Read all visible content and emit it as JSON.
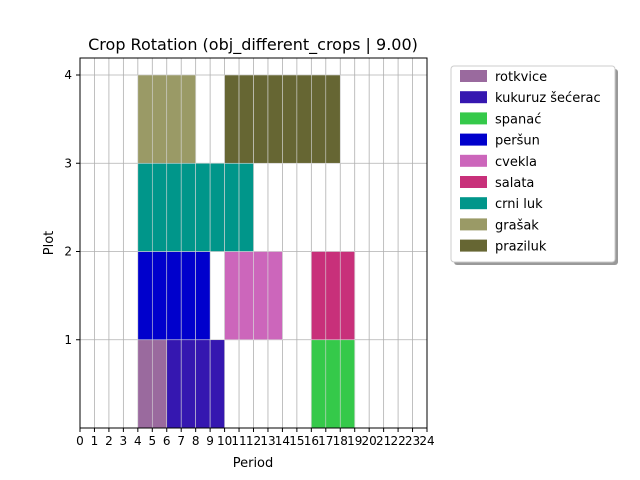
{
  "chart_data": {
    "type": "bar",
    "title": "Crop Rotation (obj_different_crops | 9.00)",
    "xlabel": "Period",
    "ylabel": "Plot",
    "xlim": [
      0,
      24
    ],
    "ylim": [
      0,
      4
    ],
    "xticks": [
      "0",
      "1",
      "2",
      "3",
      "4",
      "5",
      "6",
      "7",
      "8",
      "9",
      "10",
      "11",
      "12",
      "13",
      "14",
      "15",
      "16",
      "17",
      "18",
      "19",
      "20",
      "21",
      "22",
      "23",
      "24"
    ],
    "yticks": [
      "1",
      "2",
      "3",
      "4"
    ],
    "grid": true,
    "legend_position": "outside-right",
    "legend": [
      {
        "name": "rotkvice",
        "color": "#9a6a9e"
      },
      {
        "name": "kukuruz šećerac",
        "color": "#3517b0"
      },
      {
        "name": "spanać",
        "color": "#35c94a"
      },
      {
        "name": "peršun",
        "color": "#0000cc"
      },
      {
        "name": "cvekla",
        "color": "#cc66bb"
      },
      {
        "name": "salata",
        "color": "#c8307a"
      },
      {
        "name": "crni luk",
        "color": "#00968a"
      },
      {
        "name": "grašak",
        "color": "#9a9a66"
      },
      {
        "name": "praziluk",
        "color": "#666633"
      }
    ],
    "blocks": [
      {
        "plot": 1,
        "crop": "rotkvice",
        "periods": [
          4,
          5
        ]
      },
      {
        "plot": 1,
        "crop": "kukuruz šećerac",
        "periods": [
          6,
          7,
          8,
          9
        ]
      },
      {
        "plot": 1,
        "crop": "spanać",
        "periods": [
          16,
          17,
          18
        ]
      },
      {
        "plot": 2,
        "crop": "peršun",
        "periods": [
          4,
          5,
          6,
          7,
          8
        ]
      },
      {
        "plot": 2,
        "crop": "cvekla",
        "periods": [
          10,
          11,
          12,
          13
        ]
      },
      {
        "plot": 2,
        "crop": "salata",
        "periods": [
          16,
          17,
          18
        ]
      },
      {
        "plot": 3,
        "crop": "crni luk",
        "periods": [
          4,
          5,
          6,
          7,
          8,
          9,
          10,
          11
        ]
      },
      {
        "plot": 4,
        "crop": "grašak",
        "periods": [
          4,
          5,
          6,
          7
        ]
      },
      {
        "plot": 4,
        "crop": "praziluk",
        "periods": [
          10,
          11,
          12,
          13,
          14,
          15,
          16,
          17
        ]
      }
    ]
  }
}
